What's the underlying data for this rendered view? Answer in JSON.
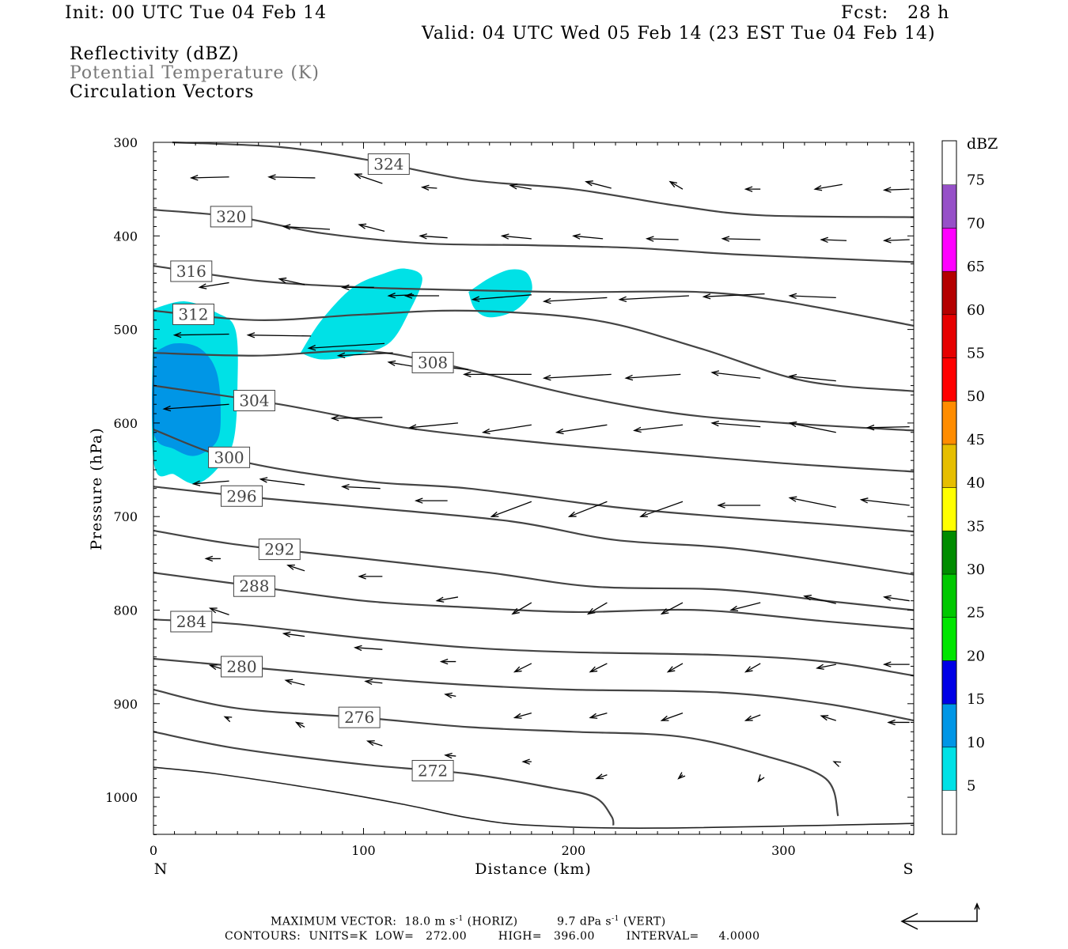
{
  "header": {
    "init": "Init: 00 UTC Tue 04 Feb 14",
    "fcst": "Fcst:   28 h",
    "valid": "Valid: 04 UTC Wed 05 Feb 14 (23 EST Tue 04 Feb 14)",
    "field1": "Reflectivity (dBZ)",
    "field2": "Potential Temperature (K)",
    "field3": "Circulation Vectors"
  },
  "footer": {
    "max_vector_label": "MAXIMUM VECTOR:",
    "horiz_value": "18.0 m s",
    "horiz_unit": "(HORIZ)",
    "vert_value": "9.7 dPa s",
    "vert_unit": "(VERT)",
    "sup": "-1",
    "contours_label": "CONTOURS:",
    "units": "UNITS=K",
    "low": "LOW=   272.00",
    "high": "HIGH=   396.00",
    "interval": "INTERVAL=     4.0000"
  },
  "chart_data": {
    "type": "contour",
    "xlabel": "Distance (km)",
    "ylabel": "Pressure (hPa)",
    "xlim": [
      0,
      362
    ],
    "ylim": [
      1040,
      300
    ],
    "x_ticks": [
      0,
      100,
      200,
      300
    ],
    "y_ticks": [
      300,
      400,
      500,
      600,
      700,
      800,
      900,
      1000
    ],
    "x_end_labels": [
      "N",
      "S"
    ],
    "colorbar": {
      "title": "dBZ",
      "labels": [
        5,
        10,
        15,
        20,
        25,
        30,
        35,
        40,
        45,
        50,
        55,
        60,
        65,
        70,
        75
      ],
      "colors": [
        "#00e1e6",
        "#0096e6",
        "#0000e6",
        "#00e600",
        "#00c800",
        "#008c00",
        "#ffff00",
        "#e6be00",
        "#ff8c00",
        "#ff0000",
        "#e60000",
        "#b40000",
        "#ff00ff",
        "#9650c8"
      ]
    },
    "theta_contours": [
      {
        "value": 324,
        "pts": [
          [
            9,
            300
          ],
          [
            60,
            305
          ],
          [
            100,
            318
          ],
          [
            150,
            340
          ],
          [
            200,
            350
          ],
          [
            250,
            368
          ],
          [
            290,
            378
          ],
          [
            362,
            380
          ]
        ],
        "label_at": 112
      },
      {
        "value": 320,
        "pts": [
          [
            0,
            372
          ],
          [
            40,
            380
          ],
          [
            80,
            397
          ],
          [
            130,
            408
          ],
          [
            180,
            410
          ],
          [
            230,
            413
          ],
          [
            280,
            420
          ],
          [
            362,
            428
          ]
        ],
        "label_at": 37
      },
      {
        "value": 316,
        "pts": [
          [
            0,
            432
          ],
          [
            50,
            448
          ],
          [
            100,
            455
          ],
          [
            150,
            458
          ],
          [
            200,
            460
          ],
          [
            260,
            460
          ],
          [
            300,
            470
          ],
          [
            362,
            496
          ]
        ],
        "label_at": 18
      },
      {
        "value": 312,
        "pts": [
          [
            0,
            480
          ],
          [
            50,
            490
          ],
          [
            100,
            484
          ],
          [
            150,
            480
          ],
          [
            210,
            490
          ],
          [
            260,
            520
          ],
          [
            310,
            555
          ],
          [
            362,
            566
          ]
        ],
        "label_at": 19
      },
      {
        "value": 308,
        "pts": [
          [
            0,
            525
          ],
          [
            50,
            528
          ],
          [
            100,
            523
          ],
          [
            140,
            538
          ],
          [
            200,
            570
          ],
          [
            250,
            590
          ],
          [
            300,
            600
          ],
          [
            362,
            608
          ]
        ],
        "label_at": 133
      },
      {
        "value": 304,
        "pts": [
          [
            0,
            560
          ],
          [
            60,
            580
          ],
          [
            120,
            605
          ],
          [
            180,
            620
          ],
          [
            230,
            630
          ],
          [
            300,
            643
          ],
          [
            362,
            652
          ]
        ],
        "label_at": 48
      },
      {
        "value": 300,
        "pts": [
          [
            0,
            607
          ],
          [
            40,
            640
          ],
          [
            100,
            662
          ],
          [
            150,
            670
          ],
          [
            220,
            690
          ],
          [
            270,
            700
          ],
          [
            320,
            708
          ],
          [
            362,
            716
          ]
        ],
        "label_at": 36
      },
      {
        "value": 296,
        "pts": [
          [
            0,
            668
          ],
          [
            50,
            680
          ],
          [
            100,
            690
          ],
          [
            170,
            705
          ],
          [
            220,
            725
          ],
          [
            280,
            735
          ],
          [
            362,
            762
          ]
        ],
        "label_at": 42
      },
      {
        "value": 292,
        "pts": [
          [
            0,
            715
          ],
          [
            40,
            730
          ],
          [
            100,
            745
          ],
          [
            160,
            760
          ],
          [
            210,
            775
          ],
          [
            270,
            778
          ],
          [
            320,
            790
          ],
          [
            362,
            800
          ]
        ],
        "label_at": 60
      },
      {
        "value": 288,
        "pts": [
          [
            0,
            760
          ],
          [
            40,
            772
          ],
          [
            100,
            790
          ],
          [
            150,
            797
          ],
          [
            200,
            802
          ],
          [
            260,
            800
          ],
          [
            320,
            812
          ],
          [
            362,
            820
          ]
        ],
        "label_at": 48
      },
      {
        "value": 284,
        "pts": [
          [
            0,
            810
          ],
          [
            40,
            815
          ],
          [
            100,
            830
          ],
          [
            150,
            840
          ],
          [
            200,
            845
          ],
          [
            270,
            848
          ],
          [
            320,
            855
          ],
          [
            362,
            870
          ]
        ],
        "label_at": 18
      },
      {
        "value": 280,
        "pts": [
          [
            0,
            852
          ],
          [
            40,
            860
          ],
          [
            100,
            872
          ],
          [
            150,
            880
          ],
          [
            200,
            885
          ],
          [
            270,
            888
          ],
          [
            320,
            900
          ],
          [
            362,
            918
          ]
        ],
        "label_at": 42
      },
      {
        "value": 276,
        "pts": [
          [
            0,
            885
          ],
          [
            40,
            905
          ],
          [
            100,
            915
          ],
          [
            150,
            925
          ],
          [
            200,
            930
          ],
          [
            250,
            935
          ],
          [
            290,
            955
          ],
          [
            320,
            980
          ],
          [
            326,
            1020
          ]
        ],
        "label_at": 98
      },
      {
        "value": 272,
        "pts": [
          [
            0,
            930
          ],
          [
            40,
            948
          ],
          [
            100,
            965
          ],
          [
            150,
            975
          ],
          [
            190,
            990
          ],
          [
            210,
            1000
          ],
          [
            218,
            1020
          ],
          [
            219,
            1030
          ]
        ],
        "label_at": 133
      }
    ],
    "surface_line": {
      "pts": [
        [
          0,
          968
        ],
        [
          30,
          975
        ],
        [
          80,
          992
        ],
        [
          120,
          1008
        ],
        [
          150,
          1022
        ],
        [
          180,
          1030
        ],
        [
          240,
          1033
        ],
        [
          362,
          1028
        ]
      ]
    },
    "reflectivity": [
      {
        "dbz": 5,
        "pts": [
          [
            0,
            478
          ],
          [
            15,
            470
          ],
          [
            30,
            482
          ],
          [
            39,
            500
          ],
          [
            40,
            560
          ],
          [
            38,
            620
          ],
          [
            30,
            650
          ],
          [
            20,
            665
          ],
          [
            10,
            655
          ],
          [
            0,
            640
          ]
        ]
      },
      {
        "dbz": 10,
        "pts": [
          [
            0,
            525
          ],
          [
            10,
            515
          ],
          [
            22,
            520
          ],
          [
            30,
            545
          ],
          [
            32,
            590
          ],
          [
            30,
            620
          ],
          [
            20,
            635
          ],
          [
            10,
            628
          ],
          [
            0,
            610
          ]
        ]
      },
      {
        "dbz": 5,
        "pts": [
          [
            70,
            525
          ],
          [
            80,
            490
          ],
          [
            95,
            455
          ],
          [
            110,
            440
          ],
          [
            120,
            435
          ],
          [
            128,
            445
          ],
          [
            122,
            480
          ],
          [
            112,
            515
          ],
          [
            95,
            528
          ],
          [
            80,
            532
          ]
        ]
      },
      {
        "dbz": 5,
        "pts": [
          [
            150,
            460
          ],
          [
            160,
            445
          ],
          [
            170,
            436
          ],
          [
            178,
            440
          ],
          [
            180,
            460
          ],
          [
            172,
            480
          ],
          [
            160,
            487
          ],
          [
            153,
            478
          ]
        ]
      }
    ],
    "vectors": [
      [
        36,
        337,
        18,
        338
      ],
      [
        77,
        338,
        55,
        337
      ],
      [
        109,
        344,
        96,
        334
      ],
      [
        135,
        349,
        128,
        348
      ],
      [
        180,
        350,
        170,
        346
      ],
      [
        218,
        349,
        206,
        342
      ],
      [
        252,
        350,
        246,
        342
      ],
      [
        289,
        350,
        282,
        350
      ],
      [
        328,
        345,
        315,
        350
      ],
      [
        360,
        350,
        348,
        351
      ],
      [
        84,
        393,
        62,
        390
      ],
      [
        110,
        395,
        98,
        388
      ],
      [
        140,
        402,
        127,
        400
      ],
      [
        180,
        403,
        166,
        400
      ],
      [
        214,
        403,
        200,
        400
      ],
      [
        250,
        404,
        235,
        403
      ],
      [
        289,
        404,
        271,
        403
      ],
      [
        330,
        405,
        318,
        404
      ],
      [
        360,
        404,
        348,
        405
      ],
      [
        36,
        450,
        22,
        455
      ],
      [
        72,
        452,
        60,
        446
      ],
      [
        105,
        455,
        90,
        455
      ],
      [
        124,
        463,
        112,
        464
      ],
      [
        136,
        464,
        120,
        464
      ],
      [
        180,
        463,
        152,
        468
      ],
      [
        216,
        466,
        186,
        470
      ],
      [
        255,
        464,
        222,
        468
      ],
      [
        291,
        462,
        262,
        465
      ],
      [
        325,
        466,
        303,
        464
      ],
      [
        36,
        505,
        10,
        506
      ],
      [
        75,
        507,
        45,
        506
      ],
      [
        110,
        515,
        74,
        520
      ],
      [
        114,
        525,
        88,
        528
      ],
      [
        125,
        540,
        112,
        535
      ],
      [
        150,
        543,
        138,
        540
      ],
      [
        180,
        548,
        148,
        548
      ],
      [
        218,
        548,
        186,
        552
      ],
      [
        251,
        548,
        225,
        552
      ],
      [
        289,
        552,
        266,
        546
      ],
      [
        325,
        555,
        303,
        550
      ],
      [
        36,
        580,
        5,
        585
      ],
      [
        55,
        585,
        45,
        582
      ],
      [
        109,
        594,
        85,
        595
      ],
      [
        145,
        600,
        122,
        605
      ],
      [
        180,
        602,
        157,
        610
      ],
      [
        216,
        602,
        192,
        610
      ],
      [
        252,
        602,
        229,
        608
      ],
      [
        289,
        604,
        266,
        600
      ],
      [
        325,
        610,
        303,
        600
      ],
      [
        360,
        604,
        340,
        605
      ],
      [
        36,
        662,
        19,
        665
      ],
      [
        72,
        666,
        51,
        660
      ],
      [
        108,
        670,
        90,
        668
      ],
      [
        140,
        683,
        125,
        683
      ],
      [
        180,
        684,
        161,
        700
      ],
      [
        216,
        684,
        198,
        700
      ],
      [
        252,
        684,
        232,
        700
      ],
      [
        289,
        688,
        269,
        688
      ],
      [
        325,
        690,
        303,
        680
      ],
      [
        360,
        688,
        337,
        682
      ],
      [
        32,
        745,
        25,
        745
      ],
      [
        72,
        758,
        64,
        752
      ],
      [
        109,
        764,
        98,
        764
      ],
      [
        145,
        786,
        135,
        790
      ],
      [
        180,
        792,
        171,
        804
      ],
      [
        216,
        792,
        207,
        804
      ],
      [
        252,
        792,
        242,
        804
      ],
      [
        289,
        792,
        275,
        800
      ],
      [
        325,
        793,
        310,
        785
      ],
      [
        360,
        790,
        348,
        786
      ],
      [
        36,
        805,
        27,
        798
      ],
      [
        72,
        828,
        62,
        825
      ],
      [
        109,
        842,
        96,
        840
      ],
      [
        144,
        855,
        137,
        855
      ],
      [
        180,
        857,
        172,
        866
      ],
      [
        216,
        857,
        208,
        866
      ],
      [
        252,
        857,
        245,
        866
      ],
      [
        289,
        857,
        282,
        866
      ],
      [
        325,
        858,
        316,
        862
      ],
      [
        360,
        858,
        348,
        858
      ],
      [
        36,
        865,
        27,
        859
      ],
      [
        72,
        880,
        63,
        875
      ],
      [
        109,
        878,
        101,
        876
      ],
      [
        144,
        892,
        139,
        890
      ],
      [
        180,
        910,
        172,
        915
      ],
      [
        216,
        910,
        208,
        915
      ],
      [
        252,
        910,
        242,
        918
      ],
      [
        289,
        912,
        282,
        918
      ],
      [
        325,
        918,
        318,
        913
      ],
      [
        360,
        920,
        350,
        920
      ],
      [
        36,
        916,
        34,
        914
      ],
      [
        72,
        925,
        68,
        920
      ],
      [
        109,
        945,
        102,
        940
      ],
      [
        144,
        956,
        139,
        955
      ],
      [
        180,
        962,
        176,
        962
      ],
      [
        216,
        976,
        211,
        980
      ],
      [
        252,
        976,
        250,
        980
      ],
      [
        289,
        980,
        288,
        983
      ],
      [
        325,
        963,
        324,
        962
      ]
    ]
  }
}
